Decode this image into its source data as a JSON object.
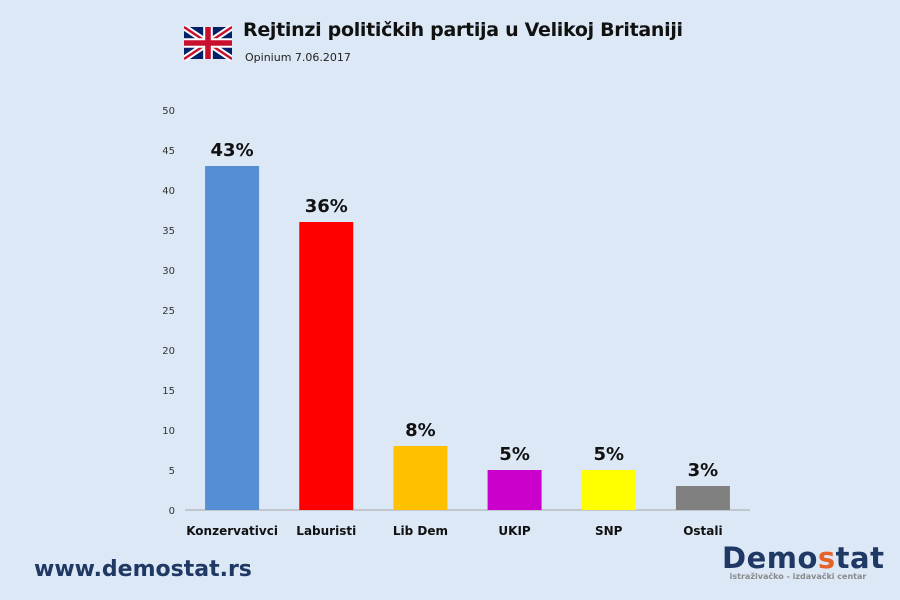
{
  "header": {
    "title": "Rejtinzi političkih partija u Velikoj Britaniji",
    "subtitle": "Opinium 7.06.2017",
    "flag_icon": "uk-flag-icon"
  },
  "footer": {
    "website": "www.demostat.rs",
    "logo_text": "Demostat",
    "logo_tagline": "istraživačko - izdavački centar",
    "logo_accent": "#e8622c",
    "logo_color": "#1f3864"
  },
  "chart_data": {
    "type": "bar",
    "title": "Rejtinzi političkih partija u Velikoj Britaniji",
    "subtitle": "Opinium 7.06.2017",
    "categories": [
      "Konzervativci",
      "Laburisti",
      "Lib Dem",
      "UKIP",
      "SNP",
      "Ostali"
    ],
    "values": [
      43,
      36,
      8,
      5,
      5,
      3
    ],
    "data_labels": [
      "43%",
      "36%",
      "8%",
      "5%",
      "5%",
      "3%"
    ],
    "colors": [
      "#558ed5",
      "#ff0000",
      "#ffc000",
      "#cc00cc",
      "#ffff00",
      "#808080"
    ],
    "ylim": [
      0,
      50
    ],
    "yticks": [
      0,
      5,
      10,
      15,
      20,
      25,
      30,
      35,
      40,
      45,
      50
    ],
    "grid": false,
    "legend": "none"
  }
}
